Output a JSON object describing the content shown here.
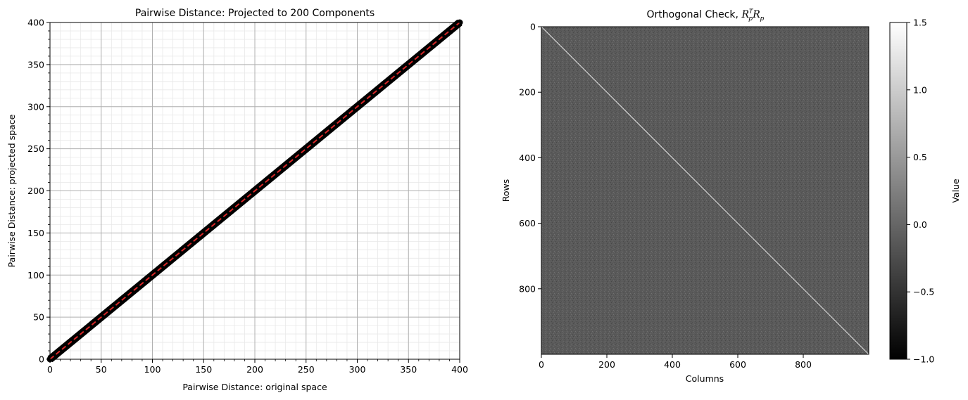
{
  "chart_data": [
    {
      "type": "scatter",
      "title": "Pairwise Distance: Projected to 200 Components",
      "xlabel": "Pairwise Distance: original space",
      "ylabel": "Pairwise Distance: projected space",
      "xlim": [
        0,
        400
      ],
      "ylim": [
        0,
        400
      ],
      "xticks": [
        "0",
        "50",
        "100",
        "150",
        "200",
        "250",
        "300",
        "350",
        "400"
      ],
      "yticks": [
        "0",
        "50",
        "100",
        "150",
        "200",
        "250",
        "300",
        "350",
        "400"
      ],
      "grid": true,
      "minor_grid": true,
      "x": [
        0,
        10,
        20,
        30,
        40,
        50,
        60,
        70,
        80,
        90,
        100,
        110,
        120,
        130,
        140,
        150,
        160,
        170,
        180,
        190,
        200,
        210,
        220,
        230,
        240,
        250,
        260,
        270,
        280,
        290,
        300,
        310,
        320,
        330,
        340,
        350,
        360,
        370,
        380,
        390,
        400
      ],
      "y": [
        0,
        10,
        20,
        30,
        40,
        50,
        60,
        70,
        80,
        90,
        100,
        110,
        120,
        130,
        140,
        150,
        160,
        170,
        180,
        190,
        200,
        210,
        220,
        230,
        240,
        250,
        260,
        270,
        280,
        290,
        300,
        310,
        320,
        330,
        340,
        350,
        360,
        370,
        380,
        390,
        400
      ],
      "point_color": "#000000",
      "reference_line": {
        "x": [
          0,
          400
        ],
        "y": [
          0,
          400
        ],
        "color": "#d62728",
        "style": "dashed"
      }
    },
    {
      "type": "heatmap",
      "title": "Orthogonal Check, R_p^T R_p",
      "xlabel": "Columns",
      "ylabel": "Rows",
      "xlim": [
        0,
        1000
      ],
      "ylim": [
        1000,
        0
      ],
      "xticks": [
        "0",
        "200",
        "400",
        "600",
        "800"
      ],
      "yticks": [
        "0",
        "200",
        "400",
        "600",
        "800"
      ],
      "colormap": "gray",
      "diagonal_value": 1.0,
      "offdiagonal_value": 0.0,
      "colorbar": {
        "label": "Value",
        "range": [
          -1.0,
          1.5
        ],
        "ticks": [
          "1.5",
          "1.0",
          "0.5",
          "0.0",
          "−0.5",
          "−1.0"
        ]
      }
    }
  ]
}
